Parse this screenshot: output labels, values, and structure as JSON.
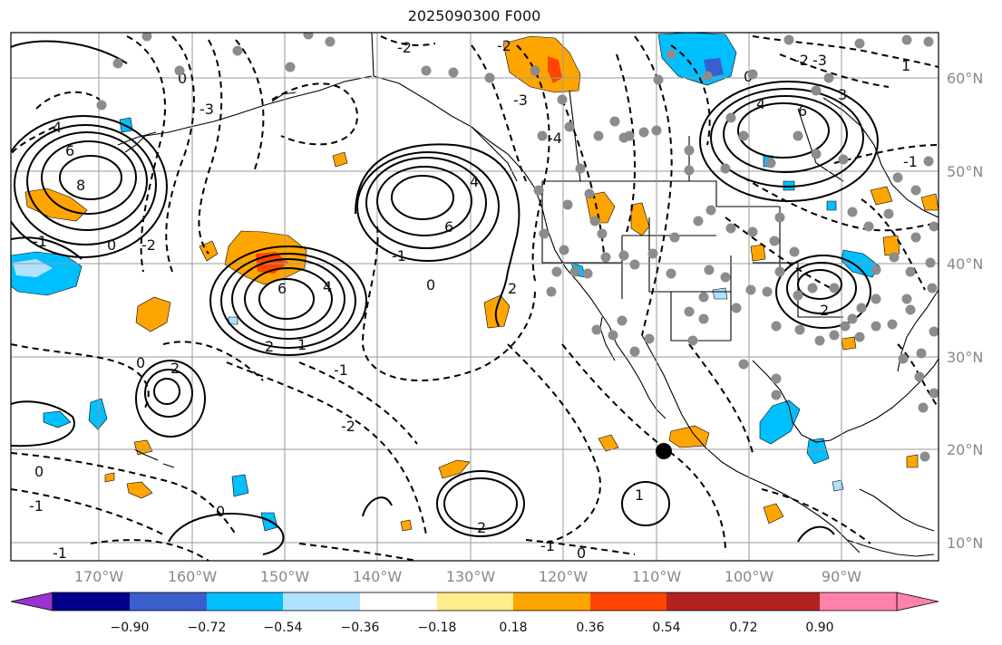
{
  "title": "2025090300 F000",
  "colors": {
    "coast": "#000000",
    "grid": "#9a9a9a",
    "station": "#8c8c8c",
    "cyclone": "#000000"
  },
  "map": {
    "lon_ticks": [
      "170°W",
      "160°W",
      "150°W",
      "140°W",
      "130°W",
      "120°W",
      "110°W",
      "100°W",
      "90°W"
    ],
    "lat_ticks": [
      "60°N",
      "50°N",
      "40°N",
      "30°N",
      "20°N",
      "10°N"
    ]
  },
  "contour_labels": [
    "4",
    "6",
    "8",
    "-1",
    "0",
    "-2",
    "-3",
    "6",
    "4",
    "2",
    "1",
    "6",
    "4",
    "2",
    "0",
    "-1",
    "-2",
    "0",
    "-3",
    "-4",
    "3",
    "6",
    "4",
    "1",
    "0",
    "-1",
    "-2",
    "-3",
    "2",
    "2",
    "0",
    "-1",
    "-2",
    "-1",
    "0",
    "2",
    "0",
    "1",
    "-1",
    "0",
    "-1",
    "-2"
  ],
  "colorbar": {
    "colors": [
      "#9a32cd",
      "#00008b",
      "#3a5fcd",
      "#00bfff",
      "#b0e2ff",
      "#ffffff",
      "#ffec8b",
      "#ffa500",
      "#ff4500",
      "#b22222",
      "#ff82ab"
    ],
    "labels": [
      "−0.90",
      "−0.72",
      "−0.54",
      "−0.36",
      "−0.18",
      "0.18",
      "0.36",
      "0.54",
      "0.72",
      "0.90"
    ]
  }
}
